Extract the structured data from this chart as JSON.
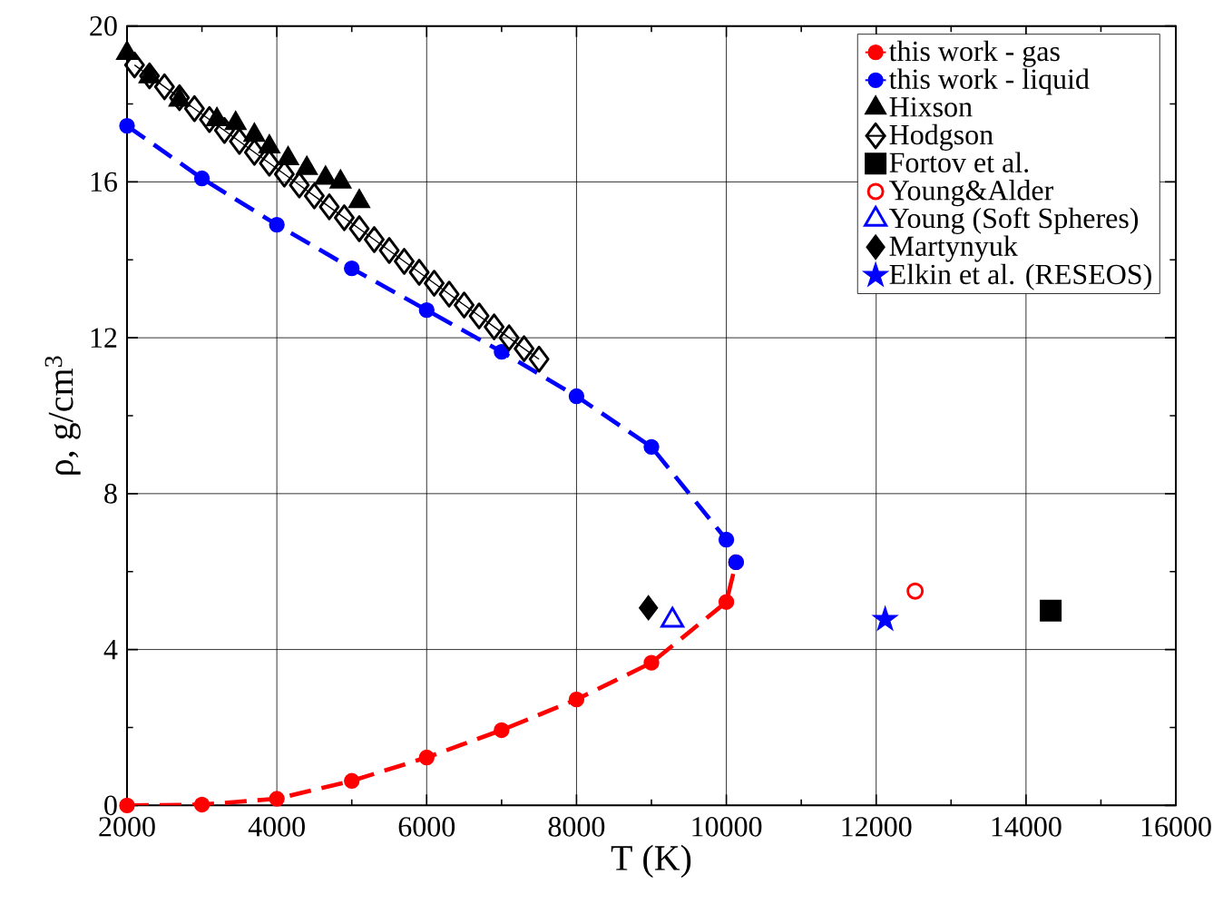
{
  "chart_data": {
    "type": "line",
    "xlabel": "T (K)",
    "ylabel": "ρ, g/cm$^{3}$",
    "xlim": [
      2000,
      16000
    ],
    "ylim": [
      0,
      20
    ],
    "xticks": [
      2000,
      4000,
      6000,
      8000,
      10000,
      12000,
      14000,
      16000
    ],
    "yticks": [
      0,
      4,
      8,
      12,
      16,
      20
    ],
    "grid": true,
    "legend": "top right",
    "series": [
      {
        "name": "this work - gas",
        "color": "#ff0000",
        "marker": "circle",
        "line_style": "dashed",
        "x": [
          2000,
          3000,
          4000,
          5000,
          6000,
          7000,
          8000,
          9000,
          10000,
          10130
        ],
        "values": [
          0,
          0.02,
          0.17,
          0.63,
          1.23,
          1.93,
          2.72,
          3.66,
          5.22,
          6.24
        ]
      },
      {
        "name": "this work - liquid",
        "color": "#0000ff",
        "marker": "circle",
        "line_style": "dashed",
        "x": [
          2000,
          3000,
          4000,
          5000,
          6000,
          7000,
          8000,
          9000,
          10000,
          10130
        ],
        "values": [
          17.44,
          16.09,
          14.9,
          13.78,
          12.71,
          11.64,
          10.5,
          9.2,
          6.82,
          6.24
        ]
      },
      {
        "name": "Hixson",
        "type": "scatter",
        "color": "#000000",
        "marker": "triangle",
        "x": [
          2000,
          2300,
          2700,
          3200,
          3450,
          3700,
          3900,
          4150,
          4400,
          4650,
          4850,
          5100
        ],
        "values": [
          19.3,
          18.7,
          18.1,
          17.6,
          17.5,
          17.2,
          16.9,
          16.6,
          16.35,
          16.1,
          16.0,
          15.5
        ]
      },
      {
        "name": "Hodgson",
        "color": "#000000",
        "marker": "diamond",
        "line_style": "solid",
        "x": [
          2100,
          2300,
          2500,
          2700,
          2900,
          3100,
          3300,
          3500,
          3700,
          3900,
          4100,
          4300,
          4500,
          4700,
          4900,
          5100,
          5300,
          5500,
          5700,
          5900,
          6100,
          6300,
          6500,
          6700,
          6900,
          7100,
          7300,
          7500
        ],
        "values": [
          19.0,
          18.72,
          18.44,
          18.16,
          17.88,
          17.6,
          17.32,
          17.04,
          16.76,
          16.48,
          16.2,
          15.92,
          15.64,
          15.36,
          15.08,
          14.8,
          14.52,
          14.24,
          13.96,
          13.68,
          13.4,
          13.12,
          12.84,
          12.56,
          12.28,
          12.0,
          11.72,
          11.45
        ]
      },
      {
        "name": "Fortov et al.",
        "type": "scatter",
        "color": "#000000",
        "marker": "square",
        "x": [
          14330
        ],
        "values": [
          5.0
        ]
      },
      {
        "name": "Young&Alder",
        "type": "scatter",
        "color": "#ff0000",
        "marker": "circle",
        "x": [
          12520
        ],
        "values": [
          5.5
        ]
      },
      {
        "name": "Young (Soft Spheres)",
        "type": "scatter",
        "color": "#0000ff",
        "marker": "triangle",
        "x": [
          9280
        ],
        "values": [
          4.75
        ]
      },
      {
        "name": "Martynyuk",
        "type": "scatter",
        "color": "#000000",
        "marker": "diamond",
        "x": [
          8960
        ],
        "values": [
          5.07
        ]
      },
      {
        "name": "Elkin et al. (RESEOS)",
        "type": "scatter",
        "color": "#0000ff",
        "marker": "star",
        "x": [
          12120
        ],
        "values": [
          4.77
        ]
      }
    ]
  }
}
